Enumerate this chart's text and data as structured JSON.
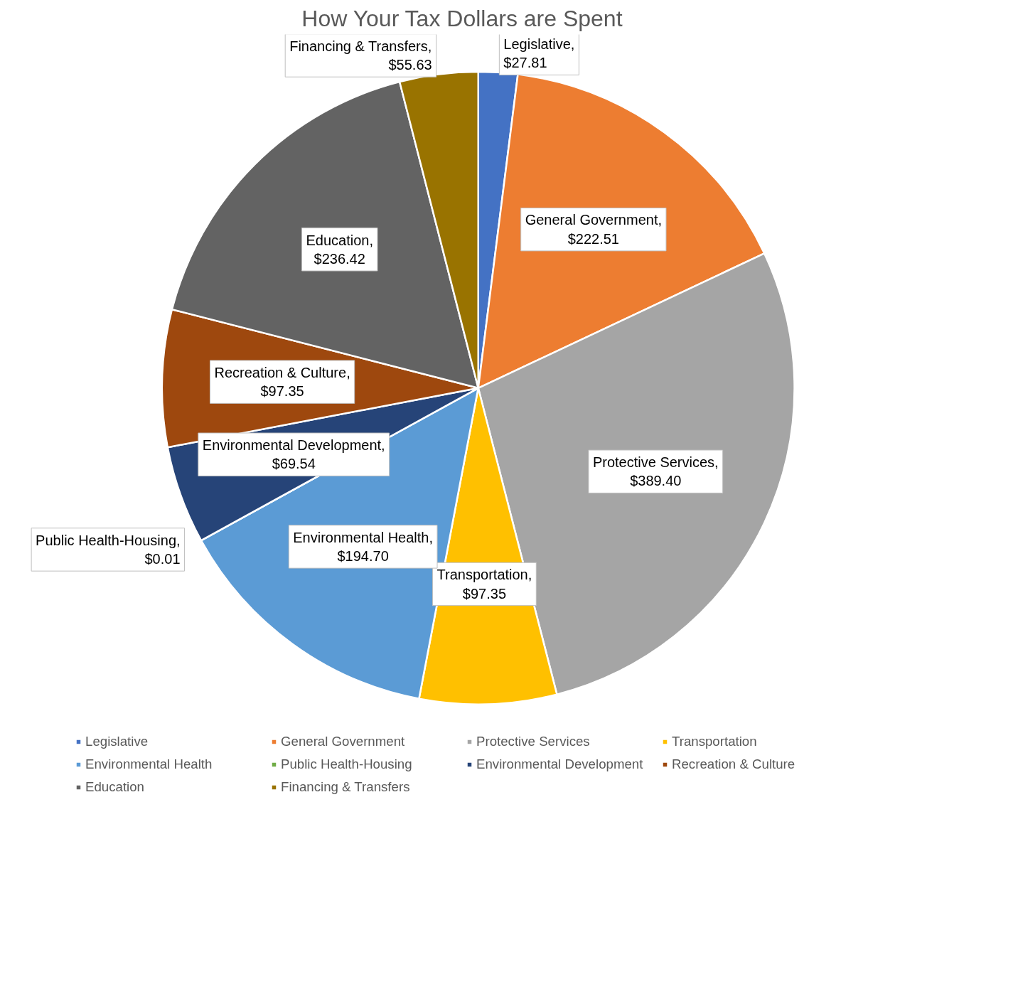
{
  "chart_data": {
    "type": "pie",
    "title": "How Your Tax Dollars are Spent",
    "categories": [
      "Legislative",
      "General Government",
      "Protective Services",
      "Transportation",
      "Environmental Health",
      "Public Health-Housing",
      "Environmental Development",
      "Recreation & Culture",
      "Education",
      "Financing & Transfers"
    ],
    "values": [
      27.81,
      222.51,
      389.4,
      97.35,
      194.7,
      0.01,
      69.54,
      97.35,
      236.42,
      55.63
    ],
    "value_labels": [
      "Legislative, $27.81",
      "General Government, $222.51",
      "Protective Services, $389.40",
      "Transportation, $97.35",
      "Environmental Health, $194.70",
      "Public Health-Housing, $0.01",
      "Environmental Development, $69.54",
      "Recreation & Culture, $97.35",
      "Education, $236.42",
      "Financing & Transfers, $55.63"
    ],
    "colors": [
      "#4472c4",
      "#ed7d31",
      "#a5a5a5",
      "#ffc000",
      "#5b9bd5",
      "#70ad47",
      "#264478",
      "#9e480e",
      "#636363",
      "#997300"
    ],
    "legend": "bottom"
  }
}
